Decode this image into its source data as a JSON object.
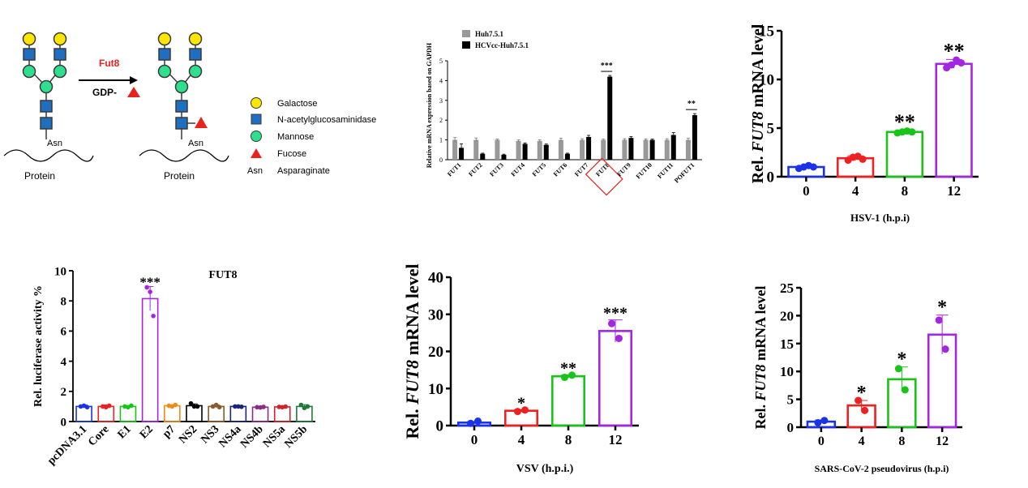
{
  "diagram": {
    "enzyme": "Fut8",
    "donor": "GDP-",
    "asn_label": "Asn",
    "protein_label": "Protein",
    "legend": [
      {
        "name": "galactose",
        "label": "Galactose",
        "icon": "yellow-circle",
        "color": "#ffe600"
      },
      {
        "name": "glcnac",
        "label": "N-acetylglucosaminidase",
        "icon": "blue-square",
        "color": "#1f6fc1"
      },
      {
        "name": "mannose",
        "label": "Mannose",
        "icon": "green-circle",
        "color": "#2ee08e"
      },
      {
        "name": "fucose",
        "label": "Fucose",
        "icon": "red-triangle",
        "color": "#e8221c"
      },
      {
        "name": "asparaginate",
        "label": "Asparaginate",
        "symbol": "Asn"
      }
    ]
  },
  "chart_data": [
    {
      "id": "fut-family",
      "type": "bar",
      "ylabel": "Relative mRNA expression based on GAPDH",
      "ylim": [
        0,
        5
      ],
      "yticks": [
        0,
        1,
        2,
        3,
        4,
        5
      ],
      "categories": [
        "FUT1",
        "FUT2",
        "FUT3",
        "FUT4",
        "FUT5",
        "FUT6",
        "FUT7",
        "FUT8",
        "FUT9",
        "FUT10",
        "FUT11",
        "POFUT1"
      ],
      "series": [
        {
          "name": "Huh7.5.1",
          "color": "#999999",
          "values": [
            1.0,
            1.0,
            1.0,
            0.95,
            0.95,
            1.0,
            1.0,
            1.0,
            1.0,
            1.0,
            1.0,
            1.0
          ],
          "errors": [
            0.12,
            0.1,
            0.04,
            0.05,
            0.05,
            0.08,
            0.06,
            0.04,
            0.06,
            0.05,
            0.06,
            0.08
          ]
        },
        {
          "name": "HCVcc-Huh7.5.1",
          "color": "#000000",
          "values": [
            0.6,
            0.3,
            0.25,
            0.8,
            0.75,
            0.3,
            1.15,
            4.2,
            1.1,
            1.0,
            1.25,
            2.25
          ],
          "errors": [
            0.2,
            0.03,
            0.03,
            0.05,
            0.04,
            0.03,
            0.08,
            0.06,
            0.07,
            0.04,
            0.12,
            0.08
          ]
        }
      ],
      "annotations": [
        {
          "category": "FUT8",
          "text": "***"
        },
        {
          "category": "POFUT1",
          "text": "**"
        }
      ],
      "highlight": "FUT8",
      "legend_position": "top-left"
    },
    {
      "id": "hsv1",
      "type": "bar",
      "title": "",
      "xlabel": "HSV-1 (h.p.i)",
      "ylabel_pre": "Rel. ",
      "ylabel_italic": "FUT8",
      "ylabel_post": " mRNA level",
      "ylim": [
        0,
        15
      ],
      "yticks": [
        0,
        5,
        10,
        15
      ],
      "categories": [
        "0",
        "4",
        "8",
        "12"
      ],
      "colors": [
        "#1b33e8",
        "#ef2020",
        "#17c417",
        "#a326e0"
      ],
      "values": [
        1.0,
        1.9,
        4.6,
        11.6
      ],
      "errors": [
        0.12,
        0.25,
        0.15,
        0.45
      ],
      "points": [
        [
          0.85,
          1.0,
          1.15,
          1.0
        ],
        [
          1.7,
          2.0,
          2.1,
          1.8
        ],
        [
          4.5,
          4.6,
          4.7,
          4.6
        ],
        [
          11.2,
          11.5,
          12.0,
          11.7
        ]
      ],
      "annotations": [
        "",
        "",
        "**",
        "**"
      ]
    },
    {
      "id": "luciferase",
      "type": "bar",
      "title": "FUT8",
      "ylabel": "Rel.  luciferase activity %",
      "ylim": [
        0,
        10
      ],
      "yticks": [
        0,
        2,
        4,
        6,
        8,
        10
      ],
      "categories": [
        "pcDNA3.1",
        "Core",
        "E1",
        "E2",
        "p7",
        "NS2",
        "NS3",
        "NS4a",
        "NS4b",
        "NS5a",
        "NS5b"
      ],
      "colors": [
        "#1b33e8",
        "#ef2020",
        "#17c417",
        "#a326e0",
        "#f28a1a",
        "#000000",
        "#8a5a2b",
        "#1a237e",
        "#8e2a86",
        "#d0242c",
        "#1f7a3a"
      ],
      "values": [
        1.0,
        1.0,
        1.0,
        8.15,
        1.05,
        1.05,
        1.0,
        1.0,
        0.95,
        0.97,
        1.0
      ],
      "errors": [
        0.1,
        0.1,
        0.06,
        0.8,
        0.06,
        0.12,
        0.1,
        0.05,
        0.05,
        0.05,
        0.12
      ],
      "points": [
        [
          1.0,
          1.05,
          0.95
        ],
        [
          1.0,
          0.95,
          1.05
        ],
        [
          1.0,
          0.95,
          1.05
        ],
        [
          8.9,
          8.6,
          7.0
        ],
        [
          1.05,
          1.0,
          1.1
        ],
        [
          1.2,
          1.0,
          1.0
        ],
        [
          1.0,
          1.1,
          0.95
        ],
        [
          1.0,
          1.0,
          0.98
        ],
        [
          0.95,
          0.93,
          0.97
        ],
        [
          0.97,
          0.95,
          0.99
        ],
        [
          1.1,
          0.9,
          1.0
        ]
      ],
      "annotations": [
        "",
        "",
        "",
        "***",
        "",
        "",
        "",
        "",
        "",
        "",
        ""
      ]
    },
    {
      "id": "vsv",
      "type": "bar",
      "xlabel": "VSV (h.p.i.)",
      "ylabel_pre": "Rel. ",
      "ylabel_italic": "FUT8",
      "ylabel_post": " mRNA level",
      "ylim": [
        0,
        40
      ],
      "yticks": [
        0,
        10,
        20,
        30,
        40
      ],
      "categories": [
        "0",
        "4",
        "8",
        "12"
      ],
      "colors": [
        "#1b33e8",
        "#ef2020",
        "#17c417",
        "#a326e0"
      ],
      "values": [
        0.8,
        4.0,
        13.3,
        25.5
      ],
      "errors": [
        0.3,
        0.25,
        0.4,
        3.0
      ],
      "points": [
        [
          0.6,
          1.2
        ],
        [
          3.8,
          4.2
        ],
        [
          13.0,
          13.6
        ],
        [
          27.5,
          23.5
        ]
      ],
      "annotations": [
        "",
        "*",
        "**",
        "***"
      ]
    },
    {
      "id": "sars",
      "type": "bar",
      "xlabel": "SARS-CoV-2 pseudovirus (h.p.i)",
      "ylabel_pre": "Rel. ",
      "ylabel_italic": "FUT8",
      "ylabel_post": " mRNA level",
      "ylim": [
        0,
        25
      ],
      "yticks": [
        0,
        5,
        10,
        15,
        20,
        25
      ],
      "categories": [
        "0",
        "4",
        "8",
        "12"
      ],
      "colors": [
        "#1b33e8",
        "#ef2020",
        "#17c417",
        "#a326e0"
      ],
      "values": [
        1.0,
        3.9,
        8.6,
        16.6
      ],
      "errors": [
        0.3,
        0.9,
        2.2,
        3.5
      ],
      "points": [
        [
          0.8,
          1.2
        ],
        [
          4.8,
          3.0
        ],
        [
          10.5,
          6.7
        ],
        [
          19.2,
          14.0
        ]
      ],
      "annotations": [
        "",
        "*",
        "*",
        "*"
      ]
    }
  ]
}
